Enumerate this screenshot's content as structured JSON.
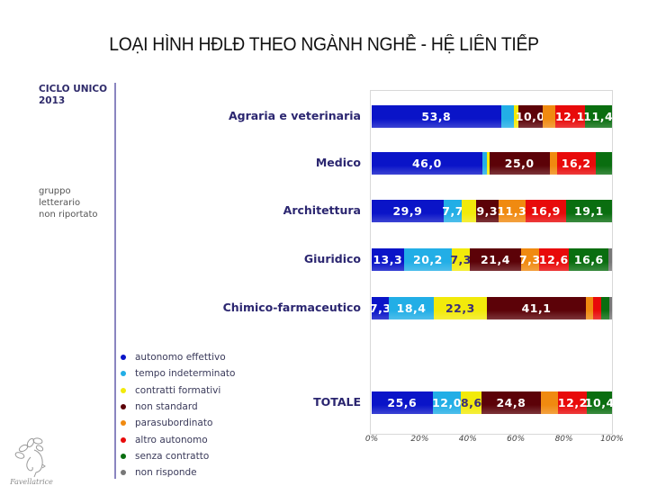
{
  "title": "LOẠI HÌNH HĐLĐ THEO NGÀNH NGHỀ - HỆ LIÊN TIẾP",
  "side": {
    "heading_line1": "CICLO UNICO",
    "heading_line2": "2013",
    "note_line1": "gruppo",
    "note_line2": "letterario",
    "note_line3": "non riportato"
  },
  "logo_text": "Favellatrice",
  "chart_data": {
    "type": "bar",
    "orientation": "horizontal",
    "stacked": "percent",
    "title": "LOẠI HÌNH HĐLĐ THEO NGÀNH NGHỀ - HỆ LIÊN TIẾP",
    "subtitle": "CICLO UNICO 2013",
    "xlabel": "",
    "ylabel": "",
    "xlim": [
      0,
      100
    ],
    "x_ticks": [
      "0%",
      "20%",
      "40%",
      "60%",
      "80%",
      "100%"
    ],
    "legend_position": "bottom-left",
    "categories": [
      "Agraria e veterinaria",
      "Medico",
      "Architettura",
      "Giuridico",
      "Chimico-farmaceutico",
      "TOTALE"
    ],
    "series": [
      {
        "name": "autonomo effettivo",
        "color": "#0a14c8",
        "values": [
          53.8,
          46.0,
          29.9,
          13.3,
          7.3,
          25.6
        ],
        "labels": [
          "53,8",
          "46,0",
          "29,9",
          "13,3",
          "7,3",
          "25,6"
        ]
      },
      {
        "name": "tempo indeterminato",
        "color": "#22aee6",
        "values": [
          5.2,
          2.0,
          7.7,
          20.2,
          18.4,
          12.0
        ],
        "labels": [
          "",
          "",
          "7,7",
          "20,2",
          "18,4",
          "12,0"
        ]
      },
      {
        "name": "contratti formativi",
        "color": "#f2ea0a",
        "values": [
          2.0,
          1.0,
          5.8,
          7.3,
          22.3,
          8.6
        ],
        "labels": [
          "",
          "",
          "",
          "7,3",
          "22,3",
          "8,6"
        ]
      },
      {
        "name": "non standard",
        "color": "#5c0208",
        "values": [
          10.0,
          25.0,
          9.3,
          21.4,
          41.1,
          24.8
        ],
        "labels": [
          "10,0",
          "25,0",
          "9,3",
          "21,4",
          "41,1",
          "24,8"
        ]
      },
      {
        "name": "parasubordinato",
        "color": "#f08a10",
        "values": [
          5.5,
          3.0,
          11.3,
          7.3,
          3.0,
          7.4
        ],
        "labels": [
          "",
          "",
          "11,3",
          "7,3",
          "",
          ""
        ]
      },
      {
        "name": "altro autonomo",
        "color": "#e80a0a",
        "values": [
          12.1,
          16.2,
          16.9,
          12.6,
          3.5,
          12.2
        ],
        "labels": [
          "12,1",
          "16,2",
          "16,9",
          "12,6",
          "",
          "12,2"
        ]
      },
      {
        "name": "senza contratto",
        "color": "#0a6e10",
        "values": [
          11.4,
          6.8,
          19.1,
          16.6,
          3.3,
          10.4
        ],
        "labels": [
          "11,4",
          "",
          "19,1",
          "16,6",
          "",
          "10,4"
        ]
      },
      {
        "name": "non risponde",
        "color": "#777777",
        "values": [
          0,
          0,
          0,
          1.3,
          1.1,
          0
        ],
        "labels": [
          "",
          "",
          "",
          "",
          "",
          ""
        ]
      }
    ]
  }
}
